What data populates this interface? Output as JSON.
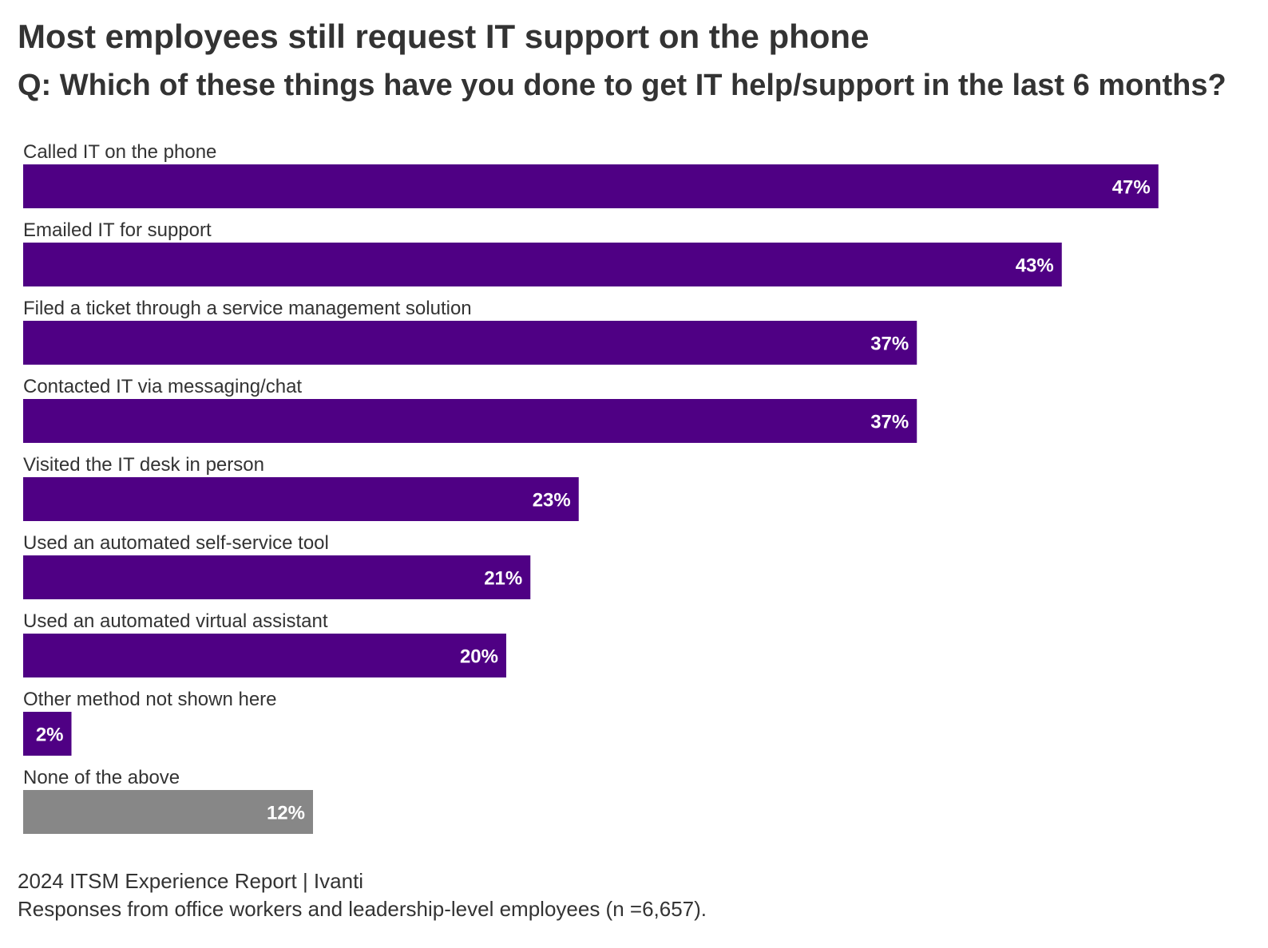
{
  "chart_data": {
    "type": "bar",
    "orientation": "horizontal",
    "title": "Most employees still request IT support on the phone",
    "subtitle": "Q: Which of these things have you done to get IT help/support in the last 6 months?",
    "categories": [
      "Called IT on the phone",
      "Emailed IT for support",
      "Filed a ticket through a service management solution",
      "Contacted IT via messaging/chat",
      "Visited the IT desk in person",
      "Used an automated self-service tool",
      "Used an automated virtual assistant",
      "Other method not shown here",
      "None of the above"
    ],
    "values": [
      47,
      43,
      37,
      37,
      23,
      21,
      20,
      2,
      12
    ],
    "value_labels": [
      "47%",
      "43%",
      "37%",
      "37%",
      "23%",
      "21%",
      "20%",
      "2%",
      "12%"
    ],
    "colors": [
      "#4f0084",
      "#4f0084",
      "#4f0084",
      "#4f0084",
      "#4f0084",
      "#4f0084",
      "#4f0084",
      "#4f0084",
      "#878787"
    ],
    "unit": "%",
    "xlim": [
      0,
      100
    ],
    "grid": false,
    "legend": "none"
  },
  "footer": {
    "source": "2024 ITSM Experience Report | Ivanti",
    "note": "Responses from office workers and leadership-level employees (n =6,657)."
  }
}
